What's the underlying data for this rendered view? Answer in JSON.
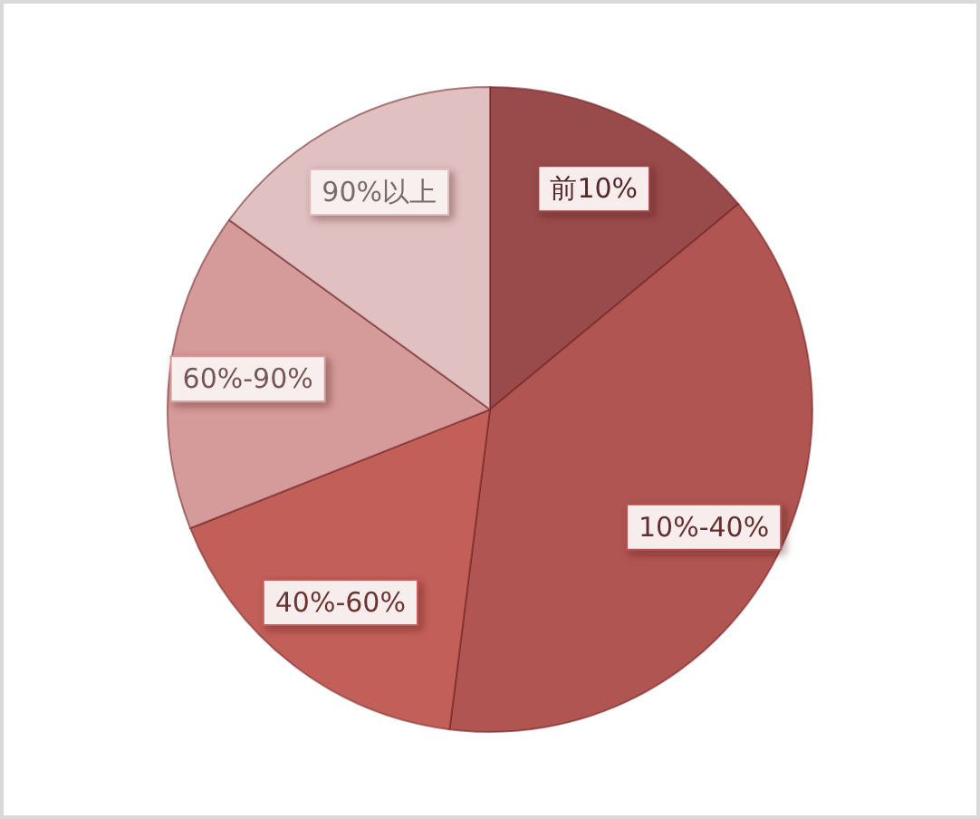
{
  "chart_data": {
    "type": "pie",
    "categories": [
      "前10%",
      "10%-40%",
      "40%-60%",
      "60%-90%",
      "90%以上"
    ],
    "values": [
      14,
      38,
      17,
      16,
      15
    ],
    "colors": [
      "#994a4a",
      "#b05552",
      "#c25f59",
      "#d49b9a",
      "#e0c0c0"
    ]
  }
}
